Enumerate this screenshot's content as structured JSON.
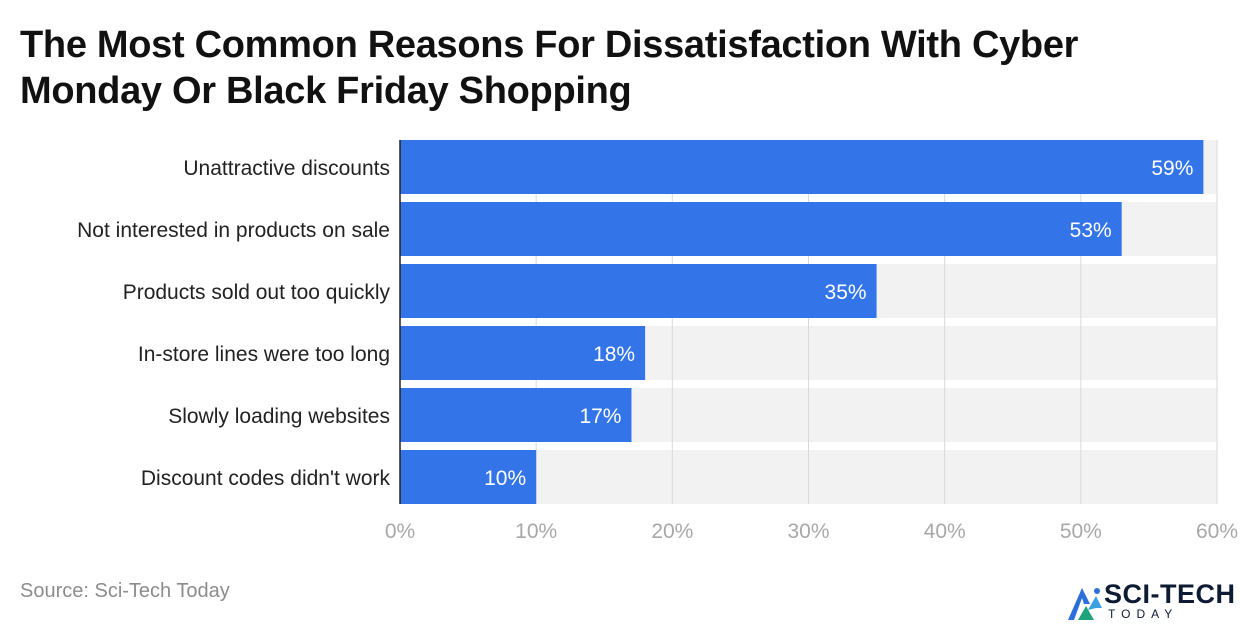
{
  "title": "The Most Common Reasons For Dissatisfaction With Cyber Monday Or Black Friday Shopping",
  "source": "Source: Sci-Tech Today",
  "logo": {
    "name": "SCI-TECH",
    "sub": "TODAY",
    "icon": "sci-tech-logo-icon"
  },
  "colors": {
    "bar": "#3375e8",
    "track": "#f2f2f2",
    "grid": "#d9d9d9",
    "axis": "#222222"
  },
  "chart_data": {
    "type": "bar",
    "orientation": "horizontal",
    "categories": [
      "Unattractive discounts",
      "Not interested in products on sale",
      "Products sold out too quickly",
      "In-store lines were too long",
      "Slowly loading websites",
      "Discount codes didn't work"
    ],
    "values": [
      59,
      53,
      35,
      18,
      17,
      10
    ],
    "value_labels": [
      "59%",
      "53%",
      "35%",
      "18%",
      "17%",
      "10%"
    ],
    "xlim": [
      0,
      60
    ],
    "ticks": [
      0,
      10,
      20,
      30,
      40,
      50,
      60
    ],
    "tick_labels": [
      "0%",
      "10%",
      "20%",
      "30%",
      "40%",
      "50%",
      "60%"
    ],
    "grid": true,
    "legend": "none"
  }
}
